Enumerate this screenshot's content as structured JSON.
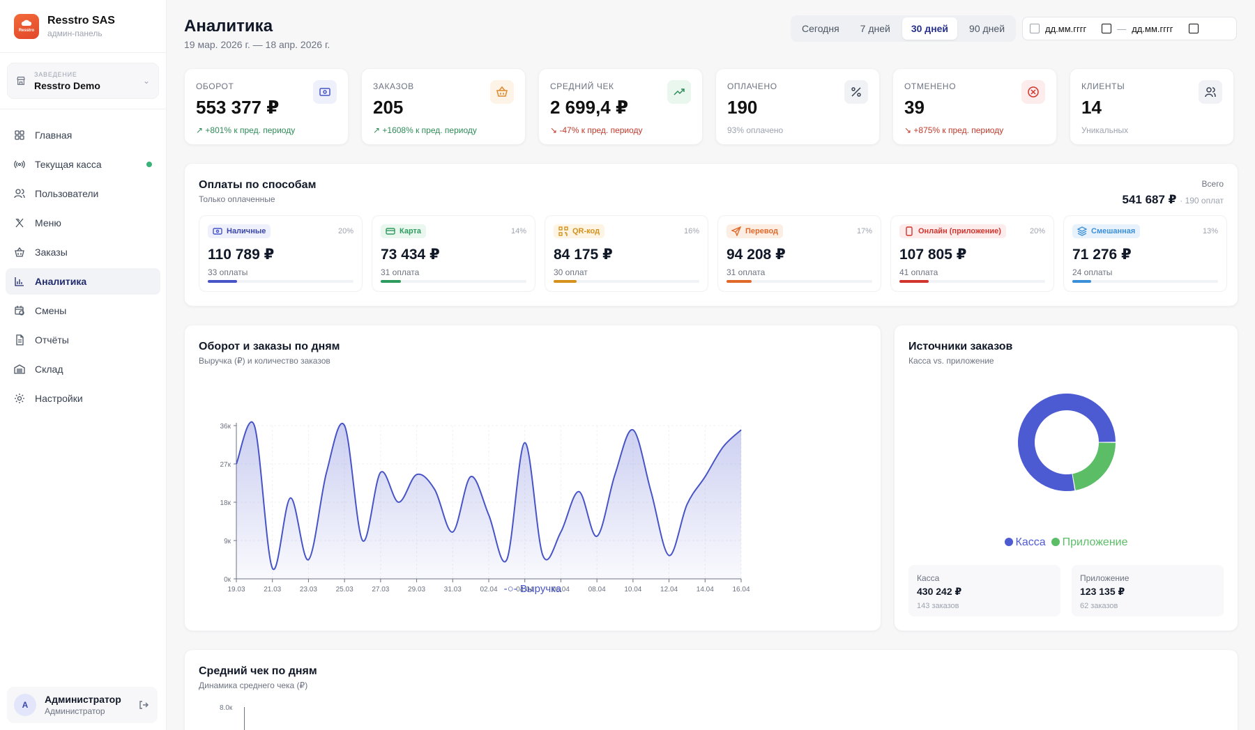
{
  "brand": {
    "title": "Resstro SAS",
    "subtitle": "админ-панель",
    "logo_text": "Resstro"
  },
  "venue": {
    "label": "ЗАВЕДЕНИЕ",
    "name": "Resstro Demo"
  },
  "nav": [
    {
      "label": "Главная",
      "icon": "grid-icon"
    },
    {
      "label": "Текущая касса",
      "icon": "radio-icon",
      "dot": true
    },
    {
      "label": "Пользователи",
      "icon": "users-icon"
    },
    {
      "label": "Меню",
      "icon": "utensils-icon"
    },
    {
      "label": "Заказы",
      "icon": "basket-icon"
    },
    {
      "label": "Аналитика",
      "icon": "chart-icon",
      "active": true
    },
    {
      "label": "Смены",
      "icon": "calendar-clock-icon"
    },
    {
      "label": "Отчёты",
      "icon": "file-icon"
    },
    {
      "label": "Склад",
      "icon": "warehouse-icon"
    },
    {
      "label": "Настройки",
      "icon": "gear-icon"
    }
  ],
  "user": {
    "initial": "A",
    "name": "Администратор",
    "role": "Администратор"
  },
  "header": {
    "title": "Аналитика",
    "subtitle": "19 мар. 2026 г. — 18 апр. 2026 г."
  },
  "range": {
    "options": [
      "Сегодня",
      "7 дней",
      "30 дней",
      "90 дней"
    ],
    "selected": "30 дней"
  },
  "dates": {
    "from": "дд.мм.гггг",
    "sep": "—",
    "to": "дд.мм.гггг"
  },
  "kpis": [
    {
      "label": "ОБОРОТ",
      "value": "553 377 ₽",
      "delta": "↗ +801% к пред. периоду",
      "trend": "up",
      "icon": "cash-icon",
      "icon_color": "#4754c5",
      "icon_bg": "#eef0fc"
    },
    {
      "label": "ЗАКАЗОВ",
      "value": "205",
      "delta": "↗ +1608% к пред. периоду",
      "trend": "up",
      "icon": "basket-icon",
      "icon_color": "#e0882a",
      "icon_bg": "#fdf3e6"
    },
    {
      "label": "СРЕДНИЙ ЧЕК",
      "value": "2 699,4 ₽",
      "delta": "↘ -47% к пред. периоду",
      "trend": "dn",
      "icon": "trending-up-icon",
      "icon_color": "#2e8b57",
      "icon_bg": "#eaf7ef"
    },
    {
      "label": "ОПЛАЧЕНО",
      "value": "190",
      "delta": "93% оплачено",
      "trend": "mu",
      "icon": "percent-icon",
      "icon_color": "#374151",
      "icon_bg": "#f1f2f5"
    },
    {
      "label": "ОТМЕНЕНО",
      "value": "39",
      "delta": "↘ +875% к пред. периоду",
      "trend": "dn",
      "icon": "x-circle-icon",
      "icon_color": "#d0342c",
      "icon_bg": "#fdecec"
    },
    {
      "label": "КЛИЕНТЫ",
      "value": "14",
      "delta": "Уникальных",
      "trend": "mu",
      "icon": "users-icon",
      "icon_color": "#374151",
      "icon_bg": "#f1f2f5"
    }
  ],
  "payments": {
    "title": "Оплаты по способам",
    "subtitle": "Только оплаченные",
    "total_label": "Всего",
    "total_value": "541 687 ₽",
    "total_sub": "· 190 оплат",
    "items": [
      {
        "name": "Наличные",
        "pct": "20%",
        "value": "110 789 ₽",
        "count": "33 оплаты",
        "fill": 0.2,
        "color": "#4754c5",
        "bg": "#eef0fc",
        "icon": "cash-icon"
      },
      {
        "name": "Карта",
        "pct": "14%",
        "value": "73 434 ₽",
        "count": "31 оплата",
        "fill": 0.14,
        "color": "#2e9b5e",
        "bg": "#e9f7ef",
        "icon": "card-icon"
      },
      {
        "name": "QR-код",
        "pct": "16%",
        "value": "84 175 ₽",
        "count": "30 оплат",
        "fill": 0.16,
        "color": "#d4921c",
        "bg": "#fdf4e3",
        "icon": "qr-icon"
      },
      {
        "name": "Перевод",
        "pct": "17%",
        "value": "94 208 ₽",
        "count": "31 оплата",
        "fill": 0.17,
        "color": "#e0692a",
        "bg": "#fdeee4",
        "icon": "send-icon"
      },
      {
        "name": "Онлайн (приложение)",
        "pct": "20%",
        "value": "107 805 ₽",
        "count": "41 оплата",
        "fill": 0.2,
        "color": "#d0342c",
        "bg": "#fdecec",
        "icon": "phone-icon"
      },
      {
        "name": "Смешанная",
        "pct": "13%",
        "value": "71 276 ₽",
        "count": "24 оплаты",
        "fill": 0.13,
        "color": "#3a8fd8",
        "bg": "#e8f2fc",
        "icon": "layers-icon"
      }
    ]
  },
  "revenue_card": {
    "title": "Оборот и заказы по дням",
    "subtitle": "Выручка (₽) и количество заказов",
    "legend": "Выручка"
  },
  "sources_card": {
    "title": "Источники заказов",
    "subtitle": "Касса vs. приложение",
    "boxes": [
      {
        "label": "Касса",
        "value": "430 242 ₽",
        "sub": "143 заказов"
      },
      {
        "label": "Приложение",
        "value": "123 135 ₽",
        "sub": "62 заказов"
      }
    ]
  },
  "avg_card": {
    "title": "Средний чек по дням",
    "subtitle": "Динамика среднего чека (₽)",
    "ytick": "8.0к"
  },
  "chart_data": [
    {
      "type": "area",
      "x": [
        "19.03",
        "20.03",
        "21.03",
        "22.03",
        "23.03",
        "24.03",
        "25.03",
        "26.03",
        "27.03",
        "28.03",
        "29.03",
        "30.03",
        "31.03",
        "01.04",
        "02.04",
        "03.04",
        "04.04",
        "05.04",
        "06.04",
        "07.04",
        "08.04",
        "09.04",
        "10.04",
        "11.04",
        "12.04",
        "13.04",
        "14.04",
        "15.04",
        "16.04"
      ],
      "x_tick_labels": [
        "19.03",
        "21.03",
        "23.03",
        "25.03",
        "27.03",
        "29.03",
        "31.03",
        "02.04",
        "04.04",
        "06.04",
        "08.04",
        "10.04",
        "12.04",
        "14.04",
        "16.04"
      ],
      "series": [
        {
          "name": "Выручка",
          "values": [
            27000,
            36000,
            2500,
            19000,
            4500,
            25000,
            36000,
            9000,
            25000,
            18000,
            24500,
            21000,
            11000,
            24000,
            15000,
            4500,
            32000,
            5500,
            11000,
            20500,
            10000,
            24500,
            35000,
            20500,
            5500,
            17500,
            24000,
            31000,
            35000
          ]
        }
      ],
      "y_ticks": [
        "0к",
        "9к",
        "18к",
        "27к",
        "36к"
      ],
      "ylim": [
        0,
        36000
      ],
      "legend": "bottom",
      "color": "#4754c5"
    },
    {
      "type": "pie",
      "categories": [
        "Касса",
        "Приложение"
      ],
      "values": [
        430242,
        123135
      ],
      "colors": [
        "#4d5bd3",
        "#5bbe67"
      ],
      "legend": "bottom"
    }
  ]
}
